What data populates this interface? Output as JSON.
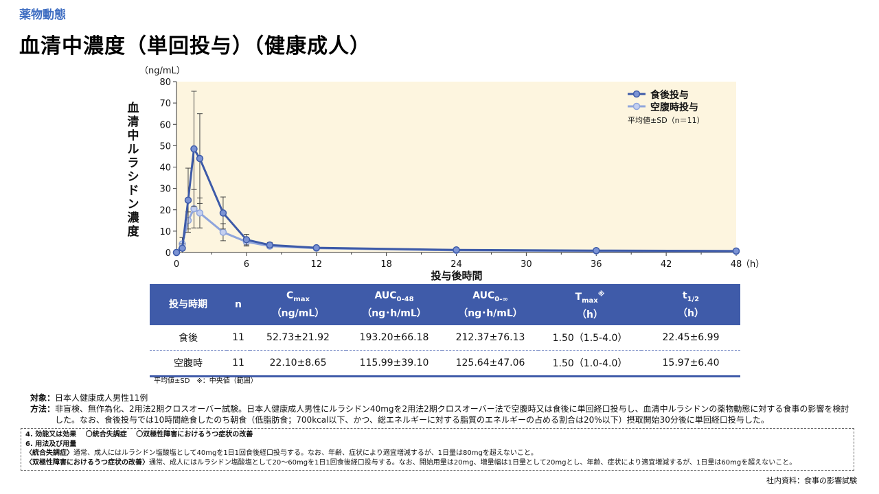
{
  "section_label": "薬物動態",
  "title": "血清中濃度（単回投与）（健康成人）",
  "chart_data": {
    "type": "line",
    "yunit": "（ng/mL）",
    "ylabel": "血清中ルラシドン濃度",
    "xlabel": "投与後時間",
    "xunit": "（h）",
    "xlim": [
      0,
      48
    ],
    "ylim": [
      0,
      80
    ],
    "xticks": [
      0,
      6,
      12,
      18,
      24,
      30,
      36,
      42,
      48
    ],
    "yticks": [
      0,
      10,
      20,
      30,
      40,
      50,
      60,
      70,
      80
    ],
    "grid": false,
    "legend_note": "平均値±SD（n＝11）",
    "series": [
      {
        "name": "食後投与",
        "color": "#3d5aa8",
        "marker_fill": "#7b93d4",
        "x": [
          0,
          0.5,
          1,
          1.5,
          2,
          4,
          6,
          8,
          12,
          24,
          36,
          48
        ],
        "y": [
          0,
          2,
          24.5,
          48.5,
          44,
          18.5,
          6,
          3.5,
          2.2,
          1.2,
          0.9,
          0.7
        ],
        "sd": [
          0,
          2,
          15,
          27,
          21,
          7.5,
          2.5,
          1.2,
          0.6,
          0.4,
          0.3,
          0.3
        ]
      },
      {
        "name": "空腹時投与",
        "color": "#8fa5dc",
        "marker_fill": "#c3cff0",
        "x": [
          0,
          0.5,
          1,
          1.5,
          2,
          4,
          6,
          8,
          12,
          24,
          36,
          48
        ],
        "y": [
          0,
          4,
          15,
          20.5,
          18.5,
          9.5,
          5,
          3,
          2,
          1,
          0.7,
          0.5
        ],
        "sd": [
          0,
          3,
          4,
          9,
          7,
          4,
          2,
          1,
          0.5,
          0.4,
          0.3,
          0.2
        ]
      }
    ]
  },
  "table": {
    "headers": [
      "投与時期",
      "n",
      "Cmax",
      "AUC0-48",
      "AUC0-∞",
      "Tmax※",
      "t1/2"
    ],
    "header_main": [
      "投与時期",
      "n",
      "C",
      "AUC",
      "AUC",
      "T",
      "t"
    ],
    "header_sub": [
      "",
      "",
      "max",
      "0-48",
      "0-∞",
      "max",
      "1/2"
    ],
    "header_sup": [
      "",
      "",
      "",
      "",
      "",
      "※",
      ""
    ],
    "units": [
      "",
      "",
      "（ng/mL）",
      "（ng･h/mL）",
      "（ng･h/mL）",
      "（h）",
      "（h）"
    ],
    "rows": [
      [
        "食後",
        "11",
        "52.73±21.92",
        "193.20±66.18",
        "212.37±76.13",
        "1.50（1.5-4.0）",
        "22.45±6.99"
      ],
      [
        "空腹時",
        "11",
        "22.10±8.65",
        "115.99±39.10",
        "125.64±47.06",
        "1.50（1.0-4.0）",
        "15.97±6.40"
      ]
    ],
    "note": "平均値±SD　※：中央値（範囲）"
  },
  "notes": {
    "subject_label": "対象：",
    "subject_text": "日本人健康成人男性11例",
    "method_label": "方法：",
    "method_text": "非盲検、無作為化、2用法2期クロスオーバー試験。日本人健康成人男性にルラシドン40mgを2用法2期クロスオーバー法で空腹時又は食後に単回経口投与し、血清中ルラシドンの薬物動態に対する食事の影響を検討した。なお、食後投与では10時間絶食したのち朝食（低脂肪食；700kcal以下、かつ、総エネルギーに対する脂質のエネルギーの占める割合は20%以下）摂取開始30分後に単回経口投与した。"
  },
  "box": {
    "line1": "4. 効能又は効果　 〇統合失調症　 〇双極性障害におけるうつ症状の改善",
    "line2": "6. 用法及び用量",
    "line3_label": "〈統合失調症〉",
    "line3_text": "通常、成人にはルラシドン塩酸塩として40mgを1日1回食後経口投与する。なお、年齢、症状により適宜増減するが、1日量は80mgを超えないこと。",
    "line4_label": "〈双極性障害におけるうつ症状の改善〉",
    "line4_text": "通常、成人にはルラシドン塩酸塩として20～60mgを1日1回食後経口投与する。なお、開始用量は20mg、増量幅は1日量として20mgとし、年齢、症状により適宜増減するが、1日量は60mgを超えないこと。"
  },
  "source": "社内資料：食事の影響試験"
}
